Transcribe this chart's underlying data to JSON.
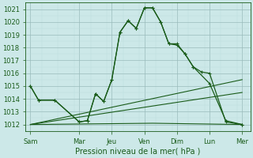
{
  "title": "Pression niveau de la mer( hPa )",
  "background_color": "#cce8e8",
  "grid_color": "#aacccc",
  "line_color": "#1a5c1a",
  "ylim": [
    1011.5,
    1021.5
  ],
  "yticks": [
    1012,
    1013,
    1014,
    1015,
    1016,
    1017,
    1018,
    1019,
    1020,
    1021
  ],
  "x_labels": [
    "Sam",
    "Mar",
    "Jeu",
    "Ven",
    "Dim",
    "Lun",
    "Mer"
  ],
  "x_ticks": [
    0,
    3,
    5,
    7,
    9,
    11,
    13
  ],
  "xlim": [
    -0.3,
    13.5
  ],
  "line1_x": [
    0,
    0.5,
    1.5,
    3,
    3.5,
    4,
    4.5,
    5,
    5.5,
    6,
    6.5,
    7,
    7.5,
    8,
    8.5,
    9,
    9.5,
    10,
    10.5,
    11,
    12,
    13
  ],
  "line1_y": [
    1015,
    1013.9,
    1013.9,
    1012.2,
    1012.3,
    1014.4,
    1013.8,
    1015.5,
    1019.2,
    1020.1,
    1019.5,
    1021.1,
    1021.1,
    1020.0,
    1018.3,
    1018.2,
    1017.5,
    1016.5,
    1016.1,
    1016.0,
    1012.2,
    1012.0
  ],
  "line2_x": [
    0,
    0.5,
    1.5,
    3,
    3.5,
    4,
    4.5,
    5,
    5.5,
    6,
    6.5,
    7,
    7.5,
    8,
    8.5,
    9,
    9.5,
    10,
    11,
    12,
    13
  ],
  "line2_y": [
    1015,
    1013.9,
    1013.9,
    1012.2,
    1012.3,
    1014.4,
    1013.8,
    1015.5,
    1019.2,
    1020.1,
    1019.5,
    1021.1,
    1021.1,
    1020.0,
    1018.3,
    1018.3,
    1017.5,
    1016.5,
    1015.2,
    1012.3,
    1012.0
  ],
  "line3_x": [
    0,
    13
  ],
  "line3_y": [
    1012.0,
    1015.5
  ],
  "line4_x": [
    0,
    13
  ],
  "line4_y": [
    1012.0,
    1014.5
  ],
  "line5_x": [
    0,
    7.5,
    13
  ],
  "line5_y": [
    1012.0,
    1012.1,
    1012.0
  ],
  "tick_fontsize": 6,
  "label_fontsize": 7
}
